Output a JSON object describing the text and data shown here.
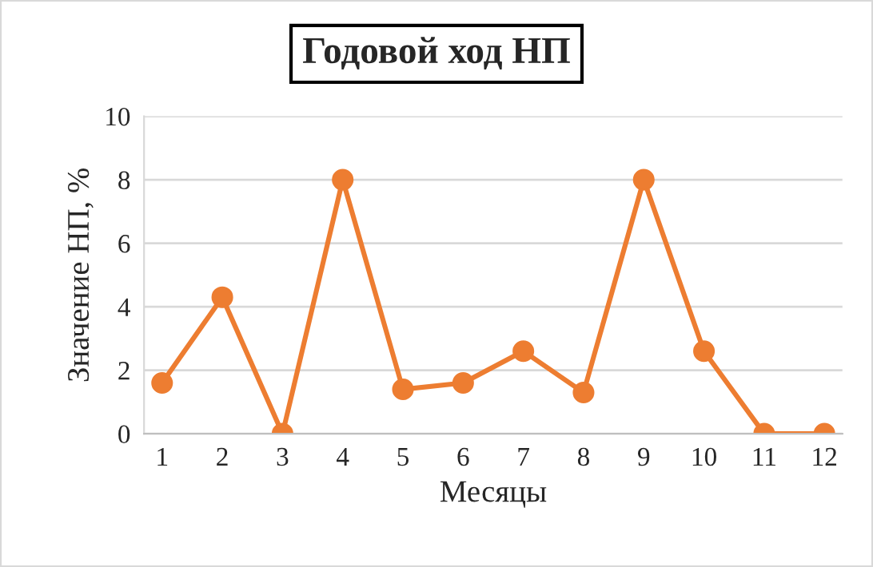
{
  "chart_data": {
    "type": "line",
    "title": "Годовой ход НП",
    "xlabel": "Месяцы",
    "ylabel": "Значение НП, %",
    "categories": [
      "1",
      "2",
      "3",
      "4",
      "5",
      "6",
      "7",
      "8",
      "9",
      "10",
      "11",
      "12"
    ],
    "series": [
      {
        "color": "#ed7d31",
        "values": [
          1.6,
          4.3,
          0,
          8,
          1.4,
          1.6,
          2.6,
          1.3,
          8,
          2.6,
          0,
          0
        ]
      }
    ],
    "ylim": [
      0,
      10
    ],
    "yticks": [
      0,
      2,
      4,
      6,
      8,
      10
    ],
    "grid": "y",
    "legend": false,
    "marker": "circle",
    "line_style": "solid"
  }
}
